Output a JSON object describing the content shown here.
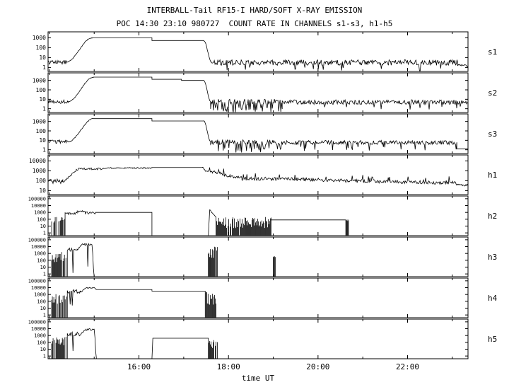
{
  "title_line1": "INTERBALL-Tail RF15-I HARD/SOFT X-RAY EMISSION",
  "title_line2": "POC 14:30 23:10 980727  COUNT RATE IN CHANNELS s1-s3, h1-h5",
  "xlabel": "time UT",
  "chart_data": {
    "type": "line",
    "y_scale": "log",
    "x_axis": {
      "start_hour": 13.97,
      "end_hour": 23.35,
      "tick_hours": [
        16,
        18,
        20,
        22
      ],
      "tick_labels": [
        "16:00",
        "18:00",
        "20:00",
        "22:00"
      ],
      "minor_tick_hours": [
        14,
        15,
        16,
        17,
        18,
        19,
        20,
        21,
        22,
        23
      ]
    },
    "panels": [
      {
        "label": "s1",
        "logmin": -0.4,
        "logmax": 3.6,
        "yticks": [
          {
            "v": 3,
            "t": "1000"
          },
          {
            "v": 2,
            "t": "100"
          },
          {
            "v": 1,
            "t": "10"
          },
          {
            "v": 0,
            "t": "1"
          }
        ],
        "segments": [
          {
            "type": "noise",
            "t0": 13.97,
            "t1": 14.38,
            "level": 0.55,
            "amp": 0.22,
            "downp": 0.03,
            "down": 0.8
          },
          {
            "type": "ramp",
            "t0": 14.38,
            "t1": 14.95,
            "from": 0.55,
            "to": 3.0,
            "amp": 0.04
          },
          {
            "type": "flat",
            "t0": 14.95,
            "t1": 16.29,
            "level": 3.0
          },
          {
            "type": "flat",
            "t0": 16.29,
            "t1": 17.45,
            "level": 2.72
          },
          {
            "type": "ramp",
            "t0": 17.45,
            "t1": 17.62,
            "from": 2.72,
            "to": 0.55,
            "amp": 0.04
          },
          {
            "type": "noise",
            "t0": 17.62,
            "t1": 23.12,
            "level": 0.5,
            "amp": 0.28,
            "downp": 0.06,
            "down": 0.9
          },
          {
            "type": "noise",
            "t0": 23.12,
            "t1": 23.35,
            "level": 0.2,
            "amp": 0.12
          }
        ]
      },
      {
        "label": "s2",
        "logmin": -0.4,
        "logmax": 3.8,
        "yticks": [
          {
            "v": 3,
            "t": "1000"
          },
          {
            "v": 2,
            "t": "100"
          },
          {
            "v": 1,
            "t": "10"
          },
          {
            "v": 0,
            "t": "1"
          }
        ],
        "segments": [
          {
            "type": "noise",
            "t0": 13.97,
            "t1": 14.42,
            "level": 0.75,
            "amp": 0.2,
            "downp": 0.03,
            "down": 0.9
          },
          {
            "type": "ramp",
            "t0": 14.42,
            "t1": 14.98,
            "from": 0.75,
            "to": 3.35,
            "amp": 0.04
          },
          {
            "type": "flat",
            "t0": 14.98,
            "t1": 16.29,
            "level": 3.35
          },
          {
            "type": "flat",
            "t0": 16.29,
            "t1": 16.95,
            "level": 3.12
          },
          {
            "type": "flat",
            "t0": 16.95,
            "t1": 17.45,
            "level": 3.0
          },
          {
            "type": "ramp",
            "t0": 17.45,
            "t1": 17.6,
            "from": 3.0,
            "to": 0.8,
            "amp": 0.04
          },
          {
            "type": "noise",
            "t0": 17.6,
            "t1": 19.2,
            "level": 0.72,
            "amp": 0.3,
            "downp": 0.25,
            "down": 1.1
          },
          {
            "type": "noise",
            "t0": 19.2,
            "t1": 23.35,
            "level": 0.7,
            "amp": 0.25,
            "downp": 0.06,
            "down": 0.9
          }
        ]
      },
      {
        "label": "s3",
        "logmin": -0.4,
        "logmax": 3.8,
        "yticks": [
          {
            "v": 3,
            "t": "1000"
          },
          {
            "v": 2,
            "t": "100"
          },
          {
            "v": 1,
            "t": "10"
          },
          {
            "v": 0,
            "t": "1"
          }
        ],
        "segments": [
          {
            "type": "noise",
            "t0": 13.97,
            "t1": 14.42,
            "level": 0.85,
            "amp": 0.18,
            "downp": 0.03,
            "down": 0.9
          },
          {
            "type": "ramp",
            "t0": 14.42,
            "t1": 14.98,
            "from": 0.85,
            "to": 3.3,
            "amp": 0.04
          },
          {
            "type": "flat",
            "t0": 14.98,
            "t1": 16.29,
            "level": 3.3
          },
          {
            "type": "flat",
            "t0": 16.29,
            "t1": 17.45,
            "level": 3.05
          },
          {
            "type": "ramp",
            "t0": 17.45,
            "t1": 17.6,
            "from": 3.05,
            "to": 0.9,
            "amp": 0.04
          },
          {
            "type": "noise",
            "t0": 17.6,
            "t1": 19.0,
            "level": 0.8,
            "amp": 0.28,
            "downp": 0.2,
            "down": 1.1
          },
          {
            "type": "noise",
            "t0": 19.0,
            "t1": 23.1,
            "level": 0.78,
            "amp": 0.22,
            "downp": 0.05,
            "down": 0.9
          },
          {
            "type": "flat",
            "t0": 23.1,
            "t1": 23.35,
            "level": 0.1
          }
        ]
      },
      {
        "label": "h1",
        "logmin": 0.6,
        "logmax": 4.6,
        "yticks": [
          {
            "v": 4,
            "t": "10000"
          },
          {
            "v": 3,
            "t": "1000"
          },
          {
            "v": 2,
            "t": "100"
          },
          {
            "v": 1,
            "t": "10"
          }
        ],
        "segments": [
          {
            "type": "noise",
            "t0": 13.97,
            "t1": 14.3,
            "level": 1.95,
            "amp": 0.25,
            "downp": 0.04,
            "down": 0.8
          },
          {
            "type": "ramp",
            "t0": 14.3,
            "t1": 14.65,
            "from": 1.95,
            "to": 3.15,
            "amp": 0.12
          },
          {
            "type": "noise",
            "t0": 14.65,
            "t1": 15.2,
            "level": 3.2,
            "amp": 0.1
          },
          {
            "type": "noise",
            "t0": 15.2,
            "t1": 16.29,
            "level": 3.28,
            "amp": 0.06
          },
          {
            "type": "flat",
            "t0": 16.29,
            "t1": 17.42,
            "level": 3.33
          },
          {
            "type": "ramp",
            "t0": 17.42,
            "t1": 17.5,
            "from": 3.33,
            "to": 2.95,
            "amp": 0.05
          },
          {
            "type": "ramp",
            "t0": 17.5,
            "t1": 18.3,
            "from": 2.95,
            "to": 2.3,
            "amp": 0.15,
            "upp": 0.05,
            "up": 0.5
          },
          {
            "type": "ramp",
            "t0": 18.3,
            "t1": 23.1,
            "from": 2.2,
            "to": 1.8,
            "amp": 0.18,
            "upp": 0.06,
            "up": 0.6
          },
          {
            "type": "noise",
            "t0": 23.1,
            "t1": 23.35,
            "level": 1.55,
            "amp": 0.12
          }
        ]
      },
      {
        "label": "h2",
        "logmin": -0.4,
        "logmax": 5.4,
        "yticks": [
          {
            "v": 5,
            "t": "100000"
          },
          {
            "v": 4,
            "t": "10000"
          },
          {
            "v": 3,
            "t": "1000"
          },
          {
            "v": 2,
            "t": "100"
          },
          {
            "v": 1,
            "t": "10"
          },
          {
            "v": 0,
            "t": "1"
          }
        ],
        "segments": [
          {
            "type": "flat",
            "t0": 13.97,
            "t1": 14.05,
            "level": -0.4
          },
          {
            "type": "spikes",
            "t0": 14.05,
            "t1": 14.35,
            "base": -0.4,
            "top": 2.7,
            "var": 1.3,
            "density": 0.75
          },
          {
            "type": "noise",
            "t0": 14.35,
            "t1": 14.62,
            "level": 2.85,
            "amp": 0.18,
            "downp": 0.07,
            "down": 3.0
          },
          {
            "type": "noise",
            "t0": 14.62,
            "t1": 14.8,
            "level": 3.15,
            "amp": 0.12,
            "downp": 0.04,
            "down": 3.2
          },
          {
            "type": "noise",
            "t0": 14.8,
            "t1": 15.03,
            "level": 2.9,
            "amp": 0.18,
            "downp": 0.06,
            "down": 3.0
          },
          {
            "type": "flat",
            "t0": 15.03,
            "t1": 16.29,
            "level": 3.0
          },
          {
            "type": "flat",
            "t0": 16.29,
            "t1": 17.55,
            "level": -0.4
          },
          {
            "type": "ramp",
            "t0": 17.55,
            "t1": 17.58,
            "from": -0.4,
            "to": 3.3
          },
          {
            "type": "ramp",
            "t0": 17.58,
            "t1": 17.72,
            "from": 3.3,
            "to": 2.35,
            "amp": 0.1
          },
          {
            "type": "spikes",
            "t0": 17.72,
            "t1": 18.95,
            "base": -0.4,
            "top": 2.4,
            "var": 1.7,
            "density": 0.92
          },
          {
            "type": "flat",
            "t0": 18.95,
            "t1": 20.62,
            "level": 1.9
          },
          {
            "type": "spikes",
            "t0": 20.62,
            "t1": 20.68,
            "base": -0.4,
            "top": 1.95,
            "var": 0.3,
            "density": 1
          },
          {
            "type": "flat",
            "t0": 20.68,
            "t1": 23.35,
            "level": -0.4
          }
        ]
      },
      {
        "label": "h3",
        "logmin": -0.4,
        "logmax": 5.4,
        "yticks": [
          {
            "v": 5,
            "t": "100000"
          },
          {
            "v": 4,
            "t": "10000"
          },
          {
            "v": 3,
            "t": "1000"
          },
          {
            "v": 2,
            "t": "100"
          },
          {
            "v": 1,
            "t": "10"
          },
          {
            "v": 0,
            "t": "1"
          }
        ],
        "segments": [
          {
            "type": "flat",
            "t0": 13.97,
            "t1": 14.05,
            "level": -0.4
          },
          {
            "type": "spikes",
            "t0": 14.05,
            "t1": 14.4,
            "base": -0.4,
            "top": 3.3,
            "var": 1.6,
            "density": 0.8
          },
          {
            "type": "noise",
            "t0": 14.4,
            "t1": 14.62,
            "level": 3.55,
            "amp": 0.25,
            "downp": 0.08,
            "down": 3.6
          },
          {
            "type": "ramp",
            "t0": 14.62,
            "t1": 14.72,
            "from": 3.55,
            "to": 4.3,
            "amp": 0.1
          },
          {
            "type": "noise",
            "t0": 14.72,
            "t1": 14.95,
            "level": 4.3,
            "amp": 0.15,
            "downp": 0.05,
            "down": 4.2
          },
          {
            "type": "ramp",
            "t0": 14.95,
            "t1": 15.0,
            "from": 4.25,
            "to": -0.4
          },
          {
            "type": "flat",
            "t0": 15.0,
            "t1": 17.55,
            "level": -0.4
          },
          {
            "type": "spikes",
            "t0": 17.55,
            "t1": 17.75,
            "base": -0.4,
            "top": 4.15,
            "var": 2.2,
            "density": 0.9
          },
          {
            "type": "flat",
            "t0": 17.75,
            "t1": 19.0,
            "level": -0.4
          },
          {
            "type": "spikes",
            "t0": 19.0,
            "t1": 19.05,
            "base": -0.4,
            "top": 2.6,
            "var": 0.2,
            "density": 1
          },
          {
            "type": "flat",
            "t0": 19.05,
            "t1": 23.35,
            "level": -0.4
          }
        ]
      },
      {
        "label": "h4",
        "logmin": -0.4,
        "logmax": 5.4,
        "yticks": [
          {
            "v": 5,
            "t": "100000"
          },
          {
            "v": 4,
            "t": "10000"
          },
          {
            "v": 3,
            "t": "1000"
          },
          {
            "v": 2,
            "t": "100"
          },
          {
            "v": 1,
            "t": "10"
          },
          {
            "v": 0,
            "t": "1"
          }
        ],
        "segments": [
          {
            "type": "flat",
            "t0": 13.97,
            "t1": 14.05,
            "level": -0.4
          },
          {
            "type": "spikes",
            "t0": 14.05,
            "t1": 14.4,
            "base": -0.4,
            "top": 3.1,
            "var": 1.5,
            "density": 0.8
          },
          {
            "type": "noise",
            "t0": 14.4,
            "t1": 14.7,
            "level": 3.45,
            "amp": 0.3,
            "downp": 0.08,
            "down": 3.4
          },
          {
            "type": "ramp",
            "t0": 14.7,
            "t1": 14.85,
            "from": 3.45,
            "to": 4.05,
            "amp": 0.08
          },
          {
            "type": "noise",
            "t0": 14.85,
            "t1": 15.0,
            "level": 4.0,
            "amp": 0.1
          },
          {
            "type": "ramp",
            "t0": 15.0,
            "t1": 15.05,
            "from": 4.0,
            "to": 3.72
          },
          {
            "type": "flat",
            "t0": 15.05,
            "t1": 16.29,
            "level": 3.72
          },
          {
            "type": "flat",
            "t0": 16.29,
            "t1": 17.48,
            "level": 3.5
          },
          {
            "type": "spikes",
            "t0": 17.48,
            "t1": 17.72,
            "base": -0.4,
            "top": 3.4,
            "var": 1.9,
            "density": 0.9
          },
          {
            "type": "flat",
            "t0": 17.72,
            "t1": 23.35,
            "level": -0.4
          }
        ]
      },
      {
        "label": "h5",
        "logmin": -0.4,
        "logmax": 5.4,
        "yticks": [
          {
            "v": 5,
            "t": "100000"
          },
          {
            "v": 4,
            "t": "10000"
          },
          {
            "v": 3,
            "t": "1000"
          },
          {
            "v": 2,
            "t": "100"
          },
          {
            "v": 1,
            "t": "10"
          },
          {
            "v": 0,
            "t": "1"
          }
        ],
        "segments": [
          {
            "type": "flat",
            "t0": 13.97,
            "t1": 14.05,
            "level": -0.4
          },
          {
            "type": "spikes",
            "t0": 14.05,
            "t1": 14.4,
            "base": -0.4,
            "top": 2.9,
            "var": 1.4,
            "density": 0.8
          },
          {
            "type": "noise",
            "t0": 14.4,
            "t1": 14.7,
            "level": 3.25,
            "amp": 0.3,
            "downp": 0.1,
            "down": 3.2
          },
          {
            "type": "ramp",
            "t0": 14.7,
            "t1": 14.82,
            "from": 3.25,
            "to": 3.9,
            "amp": 0.1
          },
          {
            "type": "noise",
            "t0": 14.82,
            "t1": 15.0,
            "level": 3.88,
            "amp": 0.15,
            "downp": 0.05,
            "down": 3.6
          },
          {
            "type": "ramp",
            "t0": 15.0,
            "t1": 15.05,
            "from": 3.85,
            "to": -0.4
          },
          {
            "type": "flat",
            "t0": 15.05,
            "t1": 16.29,
            "level": -0.4
          },
          {
            "type": "ramp",
            "t0": 16.29,
            "t1": 16.31,
            "from": -0.4,
            "to": 2.6
          },
          {
            "type": "flat",
            "t0": 16.31,
            "t1": 17.55,
            "level": 2.6
          },
          {
            "type": "spikes",
            "t0": 17.55,
            "t1": 17.75,
            "base": -0.4,
            "top": 2.65,
            "var": 1.5,
            "density": 0.9
          },
          {
            "type": "flat",
            "t0": 17.75,
            "t1": 23.35,
            "level": -0.4
          }
        ]
      }
    ]
  }
}
